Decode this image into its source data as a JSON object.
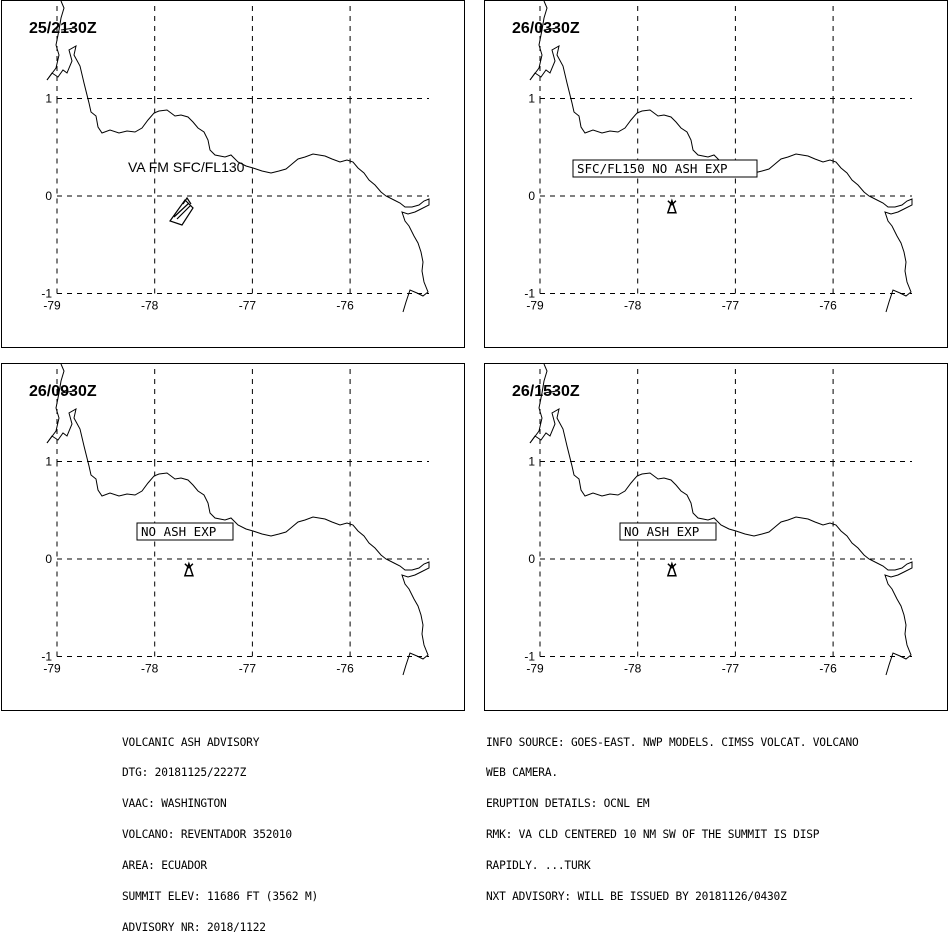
{
  "panels": [
    {
      "time": "25/2130Z",
      "label": "VA FM SFC/FL130",
      "label_boxed": false,
      "ash_polygon": true
    },
    {
      "time": "26/0330Z",
      "label": "SFC/FL150 NO ASH EXP",
      "label_boxed": true,
      "ash_polygon": false
    },
    {
      "time": "26/0930Z",
      "label": "NO ASH EXP",
      "label_boxed": true,
      "ash_polygon": false
    },
    {
      "time": "26/1530Z",
      "label": "NO ASH EXP",
      "label_boxed": true,
      "ash_polygon": false
    }
  ],
  "axes": {
    "lon_ticks": [
      "-79",
      "-78",
      "-77",
      "-76"
    ],
    "lat_ticks": [
      "1",
      "0",
      "-1"
    ]
  },
  "advisory_left": [
    "VOLCANIC ASH ADVISORY",
    "DTG: 20181125/2227Z",
    "VAAC: WASHINGTON",
    "VOLCANO: REVENTADOR 352010",
    "AREA: ECUADOR",
    "SUMMIT ELEV: 11686 FT (3562 M)",
    "ADVISORY NR: 2018/1122"
  ],
  "advisory_right": [
    "INFO SOURCE: GOES-EAST. NWP MODELS. CIMSS VOLCAT. VOLCANO",
    "WEB CAMERA.",
    "ERUPTION DETAILS: OCNL EM",
    "RMK: VA CLD CENTERED 10 NM SW OF THE SUMMIT IS DISP",
    "RAPIDLY. ...TURK",
    "NXT ADVISORY: WILL BE ISSUED BY 20181126/0430Z"
  ],
  "icons": {
    "volcano": "volcano-icon"
  },
  "colors": {
    "line": "#000000",
    "background": "#ffffff"
  }
}
